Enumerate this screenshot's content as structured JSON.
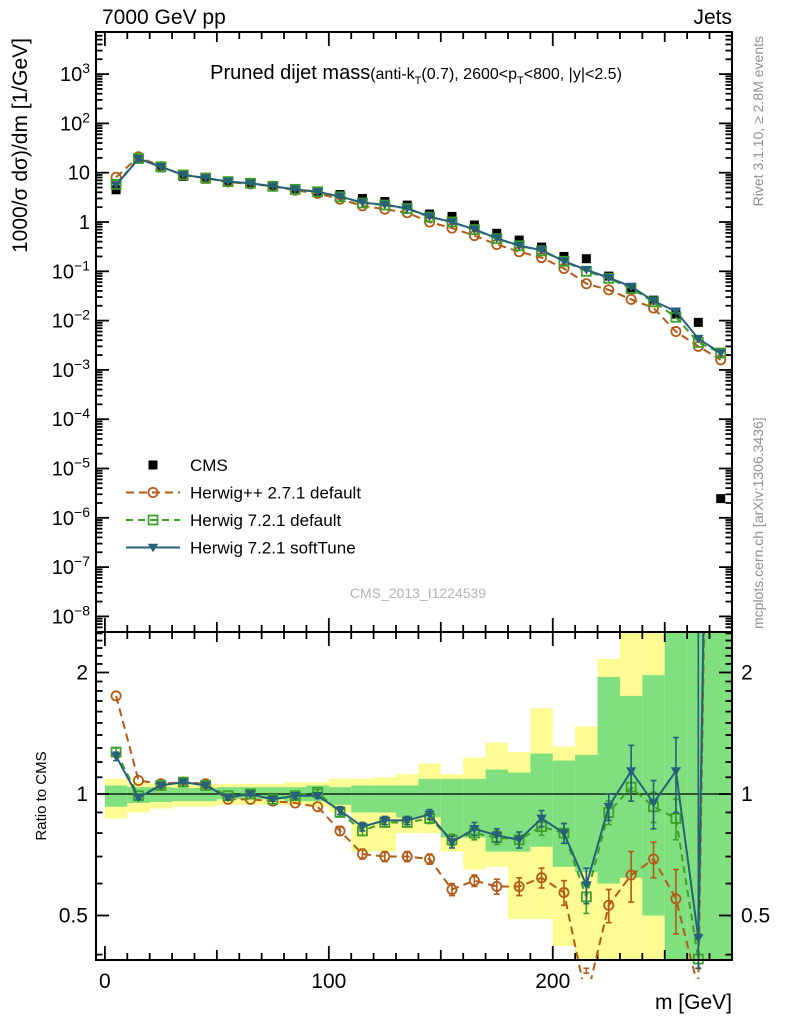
{
  "header": {
    "left": "7000 GeV pp",
    "right": "Jets"
  },
  "side_texts": {
    "top_right": "Rivet 3.1.10, ≥ 2.8M events",
    "bottom_right": "mcplots.cern.ch [arXiv:1306.3436]"
  },
  "labels": {
    "y_main": "1000/σ dσ)/dm  [1/GeV]",
    "y_ratio": "Ratio to CMS",
    "x": "m [GeV]"
  },
  "title": {
    "main": "Pruned dijet mass",
    "sub": [
      "(anti-k",
      "T",
      "(0.7), 2600<p",
      "T",
      "<800, |y|<2.5)"
    ]
  },
  "watermark": "CMS_2013_I1224539",
  "colors": {
    "cms": "#000000",
    "herwigpp": "#b45a16",
    "herwig7_default": "#3ca028",
    "herwig7_softtune": "#27607a",
    "band_yellow": "#fcfc93",
    "band_green": "#80e080",
    "frame": "#000000"
  },
  "axes": {
    "x_ticks_labeled": [
      0,
      100,
      200
    ],
    "x_minor_step": 10,
    "x_medium_step": 50,
    "x_range": [
      0,
      280
    ],
    "y_exponents": [
      3,
      2,
      1,
      0,
      -1,
      -2,
      -3,
      -4,
      -5,
      -6,
      -7,
      -8
    ],
    "ratio_ticks_labeled": [
      2,
      1,
      0.5
    ],
    "ratio_ticks_minor": [
      0.4,
      0.6,
      0.7,
      0.8,
      0.9,
      1.1,
      1.2,
      1.3,
      1.4,
      1.5,
      1.6,
      1.7,
      1.8,
      1.9,
      2.1,
      2.2,
      2.3,
      2.4,
      2.5
    ]
  },
  "chart_data": [
    {
      "type": "line",
      "panel": "main",
      "title": "Pruned dijet mass (anti-kT(0.7), 2600<pT<800, |y|<2.5)",
      "xlabel": "m [GeV]",
      "ylabel": "1000/σ dσ)/dm [1/GeV]",
      "x": [
        5,
        15,
        25,
        35,
        45,
        55,
        65,
        75,
        85,
        95,
        105,
        115,
        125,
        135,
        145,
        155,
        165,
        175,
        185,
        195,
        205,
        215,
        225,
        235,
        245,
        255,
        265,
        275
      ],
      "xlim": [
        -4,
        280
      ],
      "ylog": true,
      "series": [
        {
          "name": "CMS",
          "color": "#000000",
          "marker": "square-filled",
          "line": false,
          "values": [
            4.5,
            19.5,
            12.6,
            8.4,
            7.4,
            6.7,
            6.1,
            5.5,
            4.6,
            4.1,
            3.6,
            3.0,
            2.6,
            2.2,
            1.45,
            1.3,
            0.87,
            0.59,
            0.43,
            0.31,
            0.2,
            0.18,
            0.08,
            0.043,
            0.026,
            0.0135,
            0.0092,
            2.45e-06
          ]
        },
        {
          "name": "Herwig++ 2.7.1 default",
          "color": "#b45a16",
          "marker": "circle-open",
          "line": true,
          "dash": "8,5",
          "values": [
            8.1,
            21.1,
            13.3,
            9.0,
            7.8,
            6.5,
            5.9,
            5.3,
            4.4,
            3.8,
            2.9,
            2.13,
            1.82,
            1.54,
            1.0,
            0.75,
            0.53,
            0.35,
            0.25,
            0.19,
            0.114,
            0.056,
            0.042,
            0.027,
            0.018,
            0.006,
            0.003,
            0.0016
          ]
        },
        {
          "name": "Herwig 7.2.1 default",
          "color": "#3ca028",
          "marker": "square-open",
          "line": true,
          "dash": "7,5",
          "values": [
            5.8,
            19.4,
            13.2,
            9.0,
            7.8,
            6.6,
            6.1,
            5.3,
            4.6,
            4.1,
            3.24,
            2.43,
            2.21,
            1.87,
            1.26,
            1.0,
            0.7,
            0.46,
            0.33,
            0.26,
            0.16,
            0.1,
            0.072,
            0.045,
            0.024,
            0.0117,
            0.0036,
            0.0022
          ]
        },
        {
          "name": "Herwig 7.2.1 softTune",
          "color": "#27607a",
          "marker": "triangle-down-filled",
          "line": true,
          "dash": null,
          "values": [
            5.6,
            19.1,
            13.2,
            9.0,
            7.8,
            6.6,
            6.1,
            5.3,
            4.6,
            4.1,
            3.28,
            2.49,
            2.24,
            1.89,
            1.29,
            0.99,
            0.71,
            0.47,
            0.33,
            0.27,
            0.16,
            0.107,
            0.074,
            0.049,
            0.025,
            0.0154,
            0.0043,
            0.0022
          ]
        }
      ]
    },
    {
      "type": "line",
      "panel": "ratio",
      "ylabel": "Ratio to CMS",
      "x": [
        5,
        15,
        25,
        35,
        45,
        55,
        65,
        75,
        85,
        95,
        105,
        115,
        125,
        135,
        145,
        155,
        165,
        175,
        185,
        195,
        205,
        215,
        225,
        235,
        245,
        255,
        265,
        275
      ],
      "ylim": [
        0.388,
        2.52
      ],
      "reference_line": 1,
      "bands": {
        "yellow": [
          [
            0.87,
            1.09
          ],
          [
            0.9,
            1.07
          ],
          [
            0.92,
            1.06
          ],
          [
            0.93,
            1.06
          ],
          [
            0.93,
            1.06
          ],
          [
            0.94,
            1.06
          ],
          [
            0.94,
            1.06
          ],
          [
            0.94,
            1.06
          ],
          [
            0.94,
            1.07
          ],
          [
            0.93,
            1.07
          ],
          [
            0.9,
            1.09
          ],
          [
            0.72,
            1.09
          ],
          [
            0.72,
            1.1
          ],
          [
            0.8,
            1.12
          ],
          [
            0.8,
            1.19
          ],
          [
            0.72,
            1.12
          ],
          [
            0.65,
            1.23
          ],
          [
            0.66,
            1.34
          ],
          [
            0.49,
            1.27
          ],
          [
            0.49,
            1.63
          ],
          [
            0.42,
            1.31
          ],
          [
            0.3,
            1.47
          ],
          [
            0.3,
            2.16
          ],
          [
            0.3,
            2.6
          ],
          [
            0.3,
            2.6
          ],
          [
            0.55,
            3.3
          ],
          [
            0.55,
            3.3
          ],
          [
            0.6,
            3.3
          ]
        ],
        "green": [
          [
            0.93,
            1.05
          ],
          [
            0.95,
            1.04
          ],
          [
            0.955,
            1.04
          ],
          [
            0.96,
            1.035
          ],
          [
            0.96,
            1.035
          ],
          [
            0.97,
            1.04
          ],
          [
            0.97,
            1.04
          ],
          [
            0.97,
            1.04
          ],
          [
            0.96,
            1.04
          ],
          [
            0.96,
            1.05
          ],
          [
            0.94,
            1.04
          ],
          [
            0.9,
            1.05
          ],
          [
            0.9,
            1.05
          ],
          [
            0.875,
            1.05
          ],
          [
            0.875,
            1.09
          ],
          [
            0.78,
            1.09
          ],
          [
            0.78,
            1.09
          ],
          [
            0.72,
            1.15
          ],
          [
            0.72,
            1.13
          ],
          [
            0.74,
            1.26
          ],
          [
            0.66,
            1.21
          ],
          [
            0.64,
            1.25
          ],
          [
            0.6,
            1.95
          ],
          [
            0.62,
            1.75
          ],
          [
            0.5,
            1.97
          ],
          [
            0.3,
            2.6
          ],
          [
            0.3,
            3.3
          ],
          [
            0.3,
            3.3
          ]
        ]
      },
      "series": [
        {
          "name": "Herwig++ 2.7.1 default",
          "color": "#b45a16",
          "marker": "circle-open",
          "line": true,
          "dash": "8,5",
          "values": [
            1.75,
            1.08,
            1.06,
            1.07,
            1.06,
            0.97,
            0.97,
            0.96,
            0.95,
            0.93,
            0.81,
            0.71,
            0.7,
            0.7,
            0.69,
            0.58,
            0.61,
            0.59,
            0.59,
            0.62,
            0.57,
            0.31,
            0.53,
            0.63,
            0.69,
            0.55,
            0.33,
            900
          ],
          "err": [
            0,
            0,
            0,
            0,
            0,
            0,
            0,
            0,
            0,
            0,
            0.02,
            0.02,
            0.02,
            0.02,
            0.02,
            0.02,
            0.02,
            0.025,
            0.03,
            0.035,
            0.04,
            0.05,
            0.05,
            0.09,
            0.07,
            0.1,
            0.12,
            0
          ]
        },
        {
          "name": "Herwig 7.2.1 default",
          "color": "#3ca028",
          "marker": "square-open",
          "line": true,
          "dash": "7,5",
          "values": [
            1.27,
            0.99,
            1.05,
            1.07,
            1.05,
            0.99,
            1.0,
            0.97,
            0.99,
            1.01,
            0.9,
            0.81,
            0.85,
            0.85,
            0.87,
            0.77,
            0.8,
            0.78,
            0.77,
            0.83,
            0.8,
            0.556,
            0.9,
            1.04,
            0.93,
            0.87,
            0.39,
            1000
          ],
          "err": [
            0.03,
            0.01,
            0.01,
            0.01,
            0.01,
            0.01,
            0.01,
            0.01,
            0.015,
            0.015,
            0.02,
            0.02,
            0.02,
            0.02,
            0.025,
            0.025,
            0.03,
            0.03,
            0.035,
            0.04,
            0.045,
            0.05,
            0.06,
            0.08,
            0.08,
            0.1,
            0.06,
            0
          ]
        },
        {
          "name": "Herwig 7.2.1 softTune",
          "color": "#27607a",
          "marker": "triangle-down-filled",
          "line": true,
          "dash": null,
          "values": [
            1.24,
            0.98,
            1.05,
            1.07,
            1.05,
            0.98,
            1.0,
            0.97,
            0.99,
            0.99,
            0.91,
            0.83,
            0.86,
            0.86,
            0.89,
            0.76,
            0.82,
            0.79,
            0.77,
            0.87,
            0.8,
            0.595,
            0.93,
            1.14,
            0.95,
            1.14,
            0.44,
            1000
          ],
          "err": [
            0.03,
            0.01,
            0.01,
            0.01,
            0.01,
            0.01,
            0.01,
            0.01,
            0.015,
            0.015,
            0.02,
            0.02,
            0.02,
            0.02,
            0.025,
            0.025,
            0.03,
            0.03,
            0.035,
            0.04,
            0.045,
            0.06,
            0.07,
            0.18,
            0.13,
            0.24,
            5,
            0
          ]
        }
      ]
    }
  ],
  "legend": {
    "entries": [
      "CMS",
      "Herwig++ 2.7.1 default",
      "Herwig 7.2.1 default",
      "Herwig 7.2.1 softTune"
    ]
  }
}
